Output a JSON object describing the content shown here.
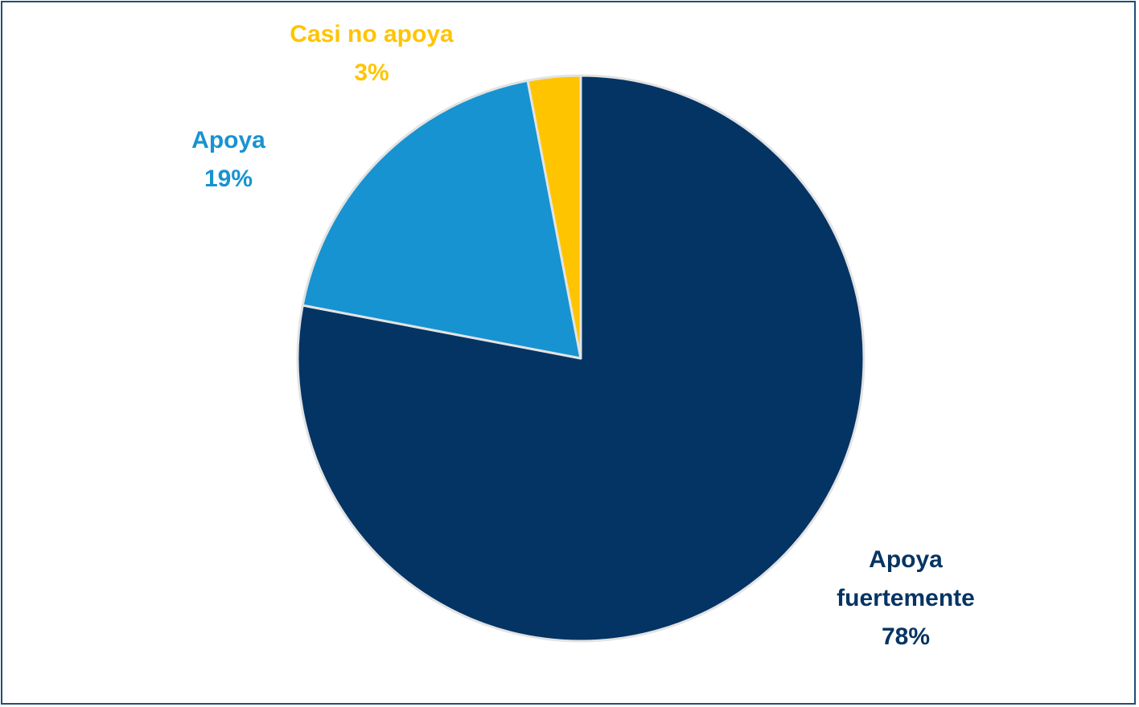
{
  "chart_data": {
    "type": "pie",
    "slices": [
      {
        "label": "Apoya fuertemente",
        "label_lines": [
          "Apoya",
          "fuertemente"
        ],
        "percent_label": "78%",
        "value": 78,
        "color": "#043464"
      },
      {
        "label": "Apoya",
        "label_lines": [
          "Apoya"
        ],
        "percent_label": "19%",
        "value": 19,
        "color": "#1793d1"
      },
      {
        "label": "Casi no apoya",
        "label_lines": [
          "Casi no apoya"
        ],
        "percent_label": "3%",
        "value": 3,
        "color": "#ffc400"
      }
    ],
    "start_angle": "12 o'clock",
    "direction": "clockwise",
    "slice_border_color": "#e3e3e3",
    "frame_color": "#1f4e79"
  }
}
